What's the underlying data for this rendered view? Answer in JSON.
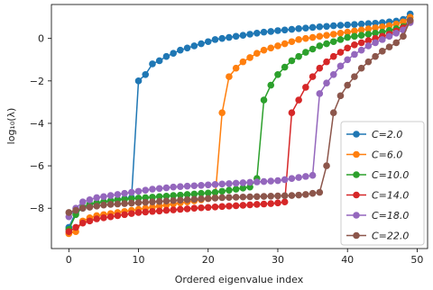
{
  "chart_data": {
    "type": "line",
    "xlabel": "Ordered eigenvalue index",
    "ylabel": "log₁₀(λ)",
    "xlim": [
      -2.5,
      51.5
    ],
    "ylim": [
      -9.9,
      1.6
    ],
    "xticks": [
      0,
      10,
      20,
      30,
      40,
      50
    ],
    "yticks": [
      -8,
      -6,
      -4,
      -2,
      0
    ],
    "ytick_labels": [
      "−8",
      "−6",
      "−4",
      "−2",
      "0"
    ],
    "grid": false,
    "legend_position": "lower-right",
    "series": [
      {
        "name": "C=2.0",
        "color": "#1f77b4",
        "values": [
          -8.9,
          -8.2,
          -8.0,
          -7.8,
          -7.75,
          -7.7,
          -7.65,
          -7.6,
          -7.55,
          -7.5,
          -2.0,
          -1.7,
          -1.2,
          -1.05,
          -0.85,
          -0.7,
          -0.55,
          -0.45,
          -0.35,
          -0.25,
          -0.15,
          -0.05,
          0.0,
          0.05,
          0.1,
          0.15,
          0.2,
          0.25,
          0.3,
          0.33,
          0.37,
          0.4,
          0.43,
          0.46,
          0.49,
          0.52,
          0.55,
          0.57,
          0.6,
          0.62,
          0.64,
          0.66,
          0.68,
          0.7,
          0.72,
          0.75,
          0.78,
          0.82,
          0.9,
          1.15
        ]
      },
      {
        "name": "C=6.0",
        "color": "#ff7f0e",
        "values": [
          -9.2,
          -9.1,
          -8.6,
          -8.45,
          -8.35,
          -8.3,
          -8.25,
          -8.2,
          -8.15,
          -8.1,
          -8.05,
          -8.0,
          -7.95,
          -7.9,
          -7.85,
          -7.8,
          -7.75,
          -7.7,
          -7.65,
          -7.6,
          -7.55,
          -7.5,
          -3.5,
          -1.8,
          -1.4,
          -1.1,
          -0.9,
          -0.7,
          -0.55,
          -0.45,
          -0.35,
          -0.25,
          -0.15,
          -0.05,
          0.0,
          0.05,
          0.1,
          0.15,
          0.2,
          0.25,
          0.3,
          0.35,
          0.4,
          0.45,
          0.5,
          0.55,
          0.6,
          0.68,
          0.78,
          1.0
        ]
      },
      {
        "name": "C=10.0",
        "color": "#2ca02c",
        "values": [
          -9.0,
          -8.3,
          -7.95,
          -7.8,
          -7.75,
          -7.7,
          -7.65,
          -7.6,
          -7.58,
          -7.55,
          -7.52,
          -7.5,
          -7.48,
          -7.45,
          -7.43,
          -7.4,
          -7.38,
          -7.35,
          -7.33,
          -7.3,
          -7.28,
          -7.25,
          -7.2,
          -7.15,
          -7.1,
          -7.05,
          -7.0,
          -6.6,
          -2.9,
          -2.2,
          -1.7,
          -1.35,
          -1.05,
          -0.85,
          -0.65,
          -0.5,
          -0.35,
          -0.25,
          -0.15,
          -0.05,
          0.05,
          0.1,
          0.15,
          0.2,
          0.25,
          0.3,
          0.38,
          0.46,
          0.56,
          0.85
        ]
      },
      {
        "name": "C=14.0",
        "color": "#d62728",
        "values": [
          -9.1,
          -8.9,
          -8.7,
          -8.6,
          -8.5,
          -8.45,
          -8.4,
          -8.35,
          -8.3,
          -8.25,
          -8.2,
          -8.18,
          -8.15,
          -8.13,
          -8.1,
          -8.08,
          -8.05,
          -8.03,
          -8.0,
          -7.98,
          -7.96,
          -7.94,
          -7.92,
          -7.9,
          -7.88,
          -7.86,
          -7.84,
          -7.82,
          -7.8,
          -7.78,
          -7.75,
          -7.7,
          -3.5,
          -2.9,
          -2.3,
          -1.8,
          -1.4,
          -1.1,
          -0.85,
          -0.65,
          -0.45,
          -0.3,
          -0.2,
          -0.1,
          0.0,
          0.1,
          0.2,
          0.35,
          0.5,
          0.8
        ]
      },
      {
        "name": "C=18.0",
        "color": "#9467bd",
        "values": [
          -8.4,
          -8.0,
          -7.7,
          -7.6,
          -7.5,
          -7.45,
          -7.4,
          -7.35,
          -7.3,
          -7.25,
          -7.2,
          -7.15,
          -7.1,
          -7.07,
          -7.04,
          -7.0,
          -6.98,
          -6.96,
          -6.94,
          -6.92,
          -6.9,
          -6.88,
          -6.86,
          -6.84,
          -6.82,
          -6.8,
          -6.78,
          -6.76,
          -6.74,
          -6.72,
          -6.7,
          -6.65,
          -6.6,
          -6.55,
          -6.5,
          -6.45,
          -2.6,
          -2.1,
          -1.7,
          -1.3,
          -1.0,
          -0.75,
          -0.55,
          -0.35,
          -0.2,
          -0.05,
          0.1,
          0.25,
          0.4,
          0.75
        ]
      },
      {
        "name": "C=22.0",
        "color": "#8c564b",
        "values": [
          -8.2,
          -8.1,
          -8.0,
          -7.95,
          -7.9,
          -7.85,
          -7.82,
          -7.8,
          -7.78,
          -7.76,
          -7.74,
          -7.72,
          -7.7,
          -7.68,
          -7.66,
          -7.64,
          -7.62,
          -7.6,
          -7.58,
          -7.56,
          -7.54,
          -7.52,
          -7.5,
          -7.49,
          -7.48,
          -7.47,
          -7.46,
          -7.45,
          -7.44,
          -7.43,
          -7.42,
          -7.41,
          -7.4,
          -7.38,
          -7.35,
          -7.3,
          -7.25,
          -6.0,
          -3.5,
          -2.7,
          -2.2,
          -1.8,
          -1.4,
          -1.1,
          -0.85,
          -0.6,
          -0.4,
          -0.2,
          0.1,
          0.85
        ]
      }
    ]
  }
}
